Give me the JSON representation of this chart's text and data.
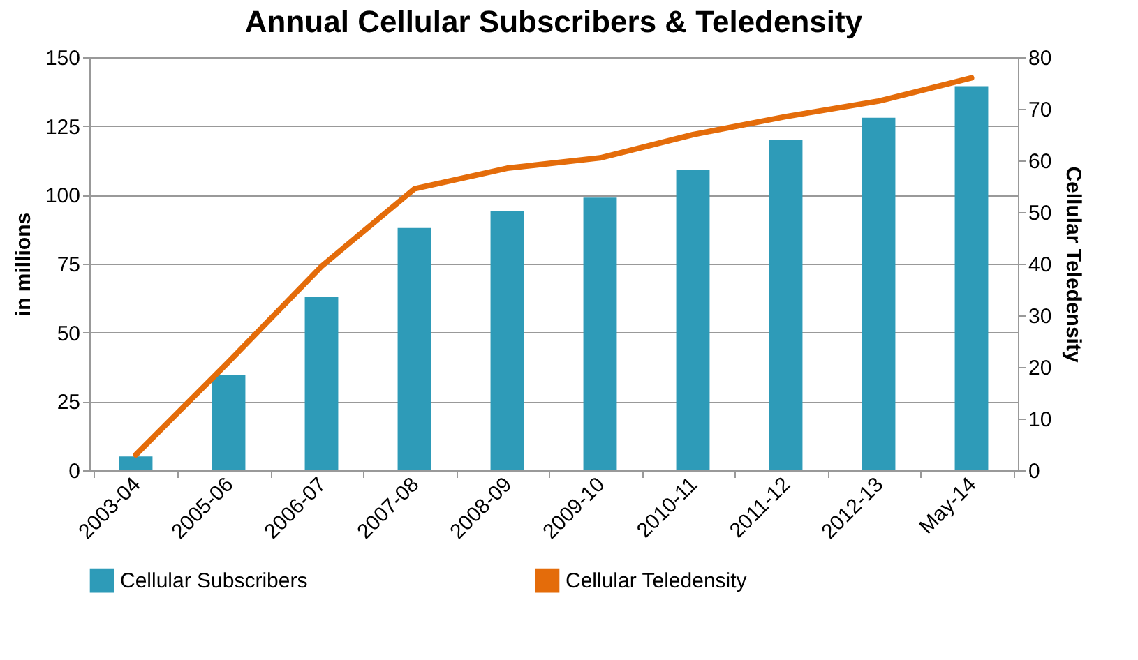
{
  "chart_data": {
    "type": "bar",
    "title": "Annual Cellular Subscribers & Teledensity",
    "ylabel": "in millions",
    "y2label": "Cellular Teledensity",
    "categories": [
      "2003-04",
      "2005-06",
      "2006-07",
      "2007-08",
      "2008-09",
      "2009-10",
      "2010-11",
      "2011-12",
      "2012-13",
      "May-14"
    ],
    "series": [
      {
        "name": "Cellular Subscribers",
        "color": "#2e9bb8",
        "values": [
          5,
          34.5,
          63,
          88,
          94,
          99,
          109,
          120,
          128,
          139.5
        ]
      },
      {
        "name": "Cellular Teledensity",
        "type": "line",
        "axis": "y2",
        "color": "#e46c0a",
        "values": [
          3,
          21,
          39.5,
          54.5,
          58.5,
          60.5,
          65,
          68.5,
          71.5,
          76
        ]
      }
    ],
    "ylim": [
      0,
      150
    ],
    "yticks": [
      0,
      25,
      50,
      75,
      100,
      125,
      150
    ],
    "y2lim": [
      0,
      80
    ],
    "y2ticks": [
      0,
      10,
      20,
      30,
      40,
      50,
      60,
      70,
      80
    ],
    "grid": "y",
    "legend": "bottom"
  }
}
